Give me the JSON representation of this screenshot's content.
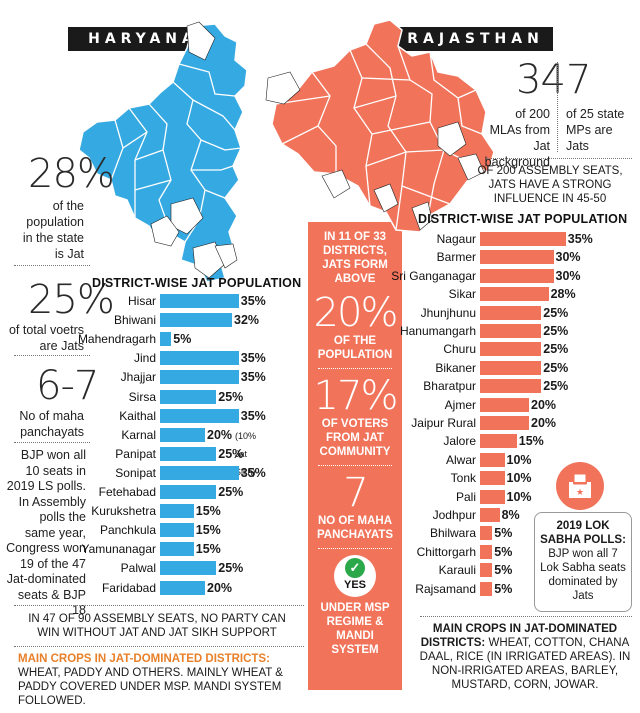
{
  "haryana": {
    "tag": "HARYANA",
    "stats": [
      {
        "value": "28%",
        "text": "of the population in the state is Jat"
      },
      {
        "value": "25%",
        "text": "of total voetrs are Jats"
      },
      {
        "value": "6-7",
        "text": "No of maha panchayats"
      }
    ],
    "politics_note": "BJP won all 10 seats in 2019 LS polls. In Assembly polls the same year, Congress won 19 of the 47 Jat-dominated seats & BJP 18",
    "footnote": "IN 47 OF 90 ASSEMBLY SEATS, NO PARTY CAN WIN WITHOUT JAT AND JAT SIKH SUPPORT",
    "crops_heading": "MAIN CROPS IN JAT-DOMINATED DISTRICTS:",
    "crops_text": "WHEAT, PADDY AND OTHERS. MAINLY WHEAT & PADDY COVERED UNDER MSP. MANDI SYSTEM FOLLOWED."
  },
  "rajasthan": {
    "tag": "RAJASTHAN",
    "stat_mla_value": "34",
    "stat_mla_text": "of 200 MLAs from Jat background",
    "stat_mp_value": "7",
    "stat_mp_text": "of 25 state MPs are Jats",
    "assembly_note": "OF 200 ASSEMBLY SEATS, JATS HAVE A STRONG INFLUENCE IN 45-50",
    "lok_sabha_heading": "2019 LOK SABHA POLLS:",
    "lok_sabha_text": "BJP won all 7 Lok Sabha seats dominated by Jats",
    "crops_heading": "MAIN CROPS IN JAT-DOMINATED DISTRICTS:",
    "crops_text": "WHEAT, COTTON, CHANA DAAL, RICE (IN IRRIGATED AREAS). IN NON-IRRIGATED AREAS, BARLEY, MUSTARD, CORN, JOWAR."
  },
  "center_band": {
    "block1_head": "IN 11 OF 33 DISTRICTS, JATS FORM ABOVE",
    "block1_value": "20%",
    "block1_sub": "OF THE POPULATION",
    "block2_value": "17%",
    "block2_sub": "OF VOTERS FROM JAT COMMUNITY",
    "block3_value": "7",
    "block3_sub": "NO OF MAHA PANCHAYATS",
    "yes_label": "YES",
    "block4_sub": "UNDER MSP REGIME & MANDI SYSTEM"
  },
  "colors": {
    "haryana_blue": "#35a9e1",
    "rajasthan_orange": "#f0735a",
    "dark": "#1a1a1a",
    "green_check": "#2aa84a"
  },
  "chart_data": [
    {
      "type": "bar",
      "title": "DISTRICT-WISE JAT POPULATION",
      "categories": [
        "Hisar",
        "Bhiwani",
        "Mahendragarh",
        "Jind",
        "Jhajjar",
        "Sirsa",
        "Kaithal",
        "Karnal",
        "Panipat",
        "Sonipat",
        "Fetehabad",
        "Kurukshetra",
        "Panchkula",
        "Yamunanagar",
        "Palwal",
        "Faridabad"
      ],
      "values": [
        35,
        32,
        5,
        35,
        35,
        25,
        35,
        20,
        25,
        35,
        25,
        15,
        15,
        15,
        25,
        20
      ],
      "labels": [
        "35%",
        "32%",
        "5%",
        "35%",
        "35%",
        "25%",
        "35%",
        "20%",
        "25%",
        "35%",
        "25%",
        "15%",
        "15%",
        "15%",
        "25%",
        "20%"
      ],
      "notes": {
        "Karnal": "(10% Jat Sikh)"
      },
      "color": "#35a9e1"
    },
    {
      "type": "bar",
      "title": "DISTRICT-WISE JAT POPULATION",
      "categories": [
        "Nagaur",
        "Barmer",
        "Sri Ganganagar",
        "Sikar",
        "Jhunjhunu",
        "Hanumangarh",
        "Churu",
        "Bikaner",
        "Bharatpur",
        "Ajmer",
        "Jaipur Rural",
        "Jalore",
        "Alwar",
        "Tonk",
        "Pali",
        "Jodhpur",
        "Bhilwara",
        "Chittorgarh",
        "Karauli",
        "Rajsamand"
      ],
      "values": [
        35,
        30,
        30,
        28,
        25,
        25,
        25,
        25,
        25,
        20,
        20,
        15,
        10,
        10,
        10,
        8,
        5,
        5,
        5,
        5
      ],
      "labels": [
        "35%",
        "30%",
        "30%",
        "28%",
        "25%",
        "25%",
        "25%",
        "25%",
        "25%",
        "20%",
        "20%",
        "15%",
        "10%",
        "10%",
        "10%",
        "8%",
        "5%",
        "5%",
        "5%",
        "5%"
      ],
      "color": "#f0735a"
    }
  ]
}
